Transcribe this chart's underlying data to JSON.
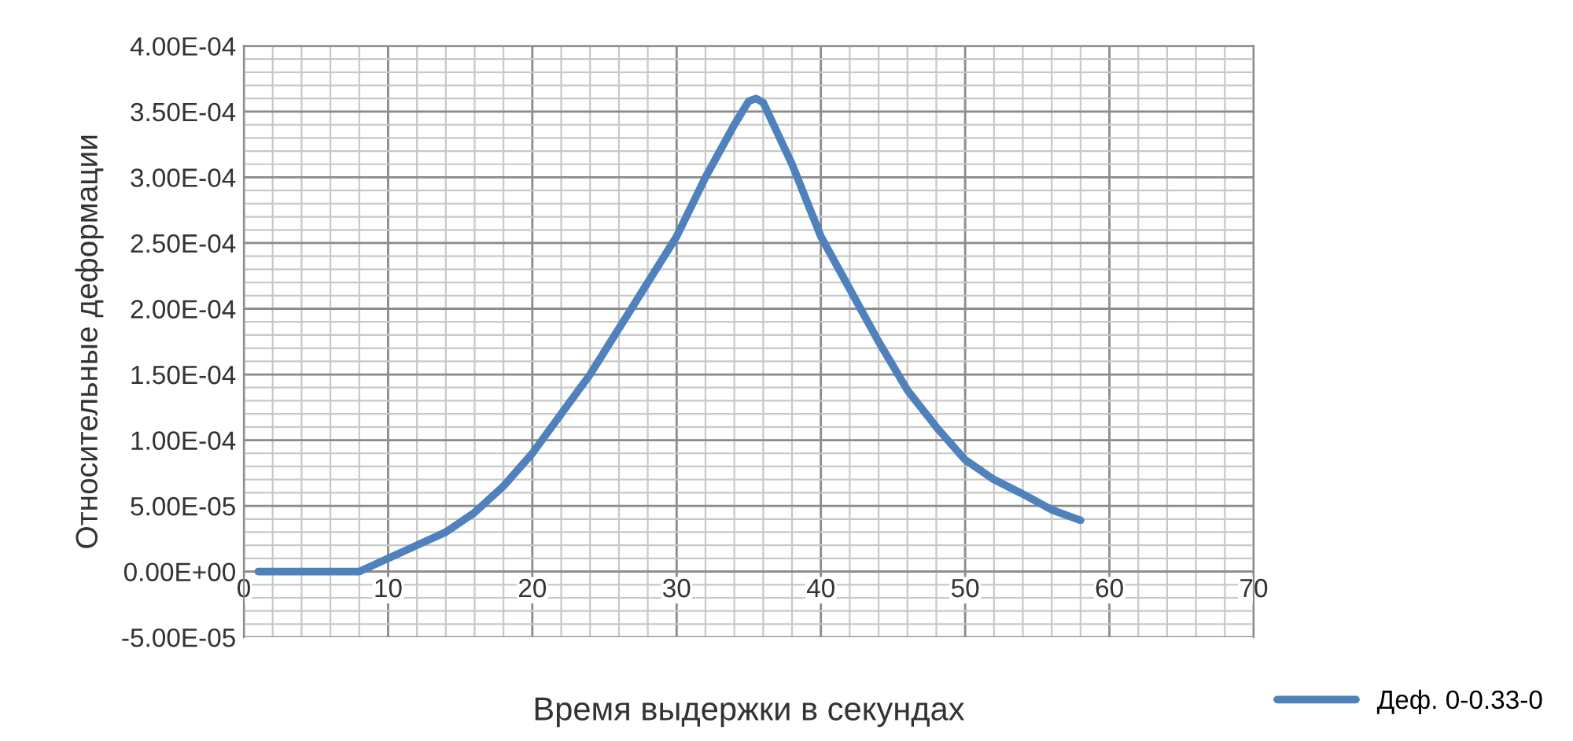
{
  "chart_data": {
    "type": "line",
    "xlabel": "Время выдержки в секундах",
    "ylabel": "Относительные деформации",
    "x": [
      1,
      4,
      7,
      8,
      10,
      12,
      14,
      16,
      18,
      20,
      22,
      24,
      26,
      28,
      30,
      32,
      34,
      35,
      35.5,
      36,
      38,
      40,
      42,
      44,
      46,
      48,
      50,
      52,
      54,
      56,
      58
    ],
    "series": [
      {
        "name": "Деф. 0-0.33-0",
        "color": "#4f81bd",
        "values": [
          0,
          0,
          0,
          0,
          1e-05,
          2e-05,
          3e-05,
          4.5e-05,
          6.5e-05,
          9e-05,
          0.00012,
          0.00015,
          0.000185,
          0.00022,
          0.000255,
          0.0003,
          0.00034,
          0.000358,
          0.00036,
          0.000357,
          0.00031,
          0.000255,
          0.000215,
          0.000175,
          0.000138,
          0.00011,
          8.5e-05,
          7e-05,
          5.9e-05,
          4.7e-05,
          3.9e-05
        ]
      }
    ],
    "xlim": [
      0,
      70
    ],
    "xticks": [
      0,
      10,
      20,
      30,
      40,
      50,
      60,
      70
    ],
    "ylim": [
      -5e-05,
      0.0004
    ],
    "yticks": [
      {
        "value": -5e-05,
        "label": "-5.00E-05"
      },
      {
        "value": 0,
        "label": "0.00E+00"
      },
      {
        "value": 5e-05,
        "label": "5.00E-05"
      },
      {
        "value": 0.0001,
        "label": "1.00E-04"
      },
      {
        "value": 0.00015,
        "label": "1.50E-04"
      },
      {
        "value": 0.0002,
        "label": "2.00E-04"
      },
      {
        "value": 0.00025,
        "label": "2.50E-04"
      },
      {
        "value": 0.0003,
        "label": "3.00E-04"
      },
      {
        "value": 0.00035,
        "label": "3.50E-04"
      },
      {
        "value": 0.0004,
        "label": "4.00E-04"
      }
    ],
    "grid": true,
    "legend": "bottom right",
    "marker": "none",
    "line_style": "solid"
  }
}
